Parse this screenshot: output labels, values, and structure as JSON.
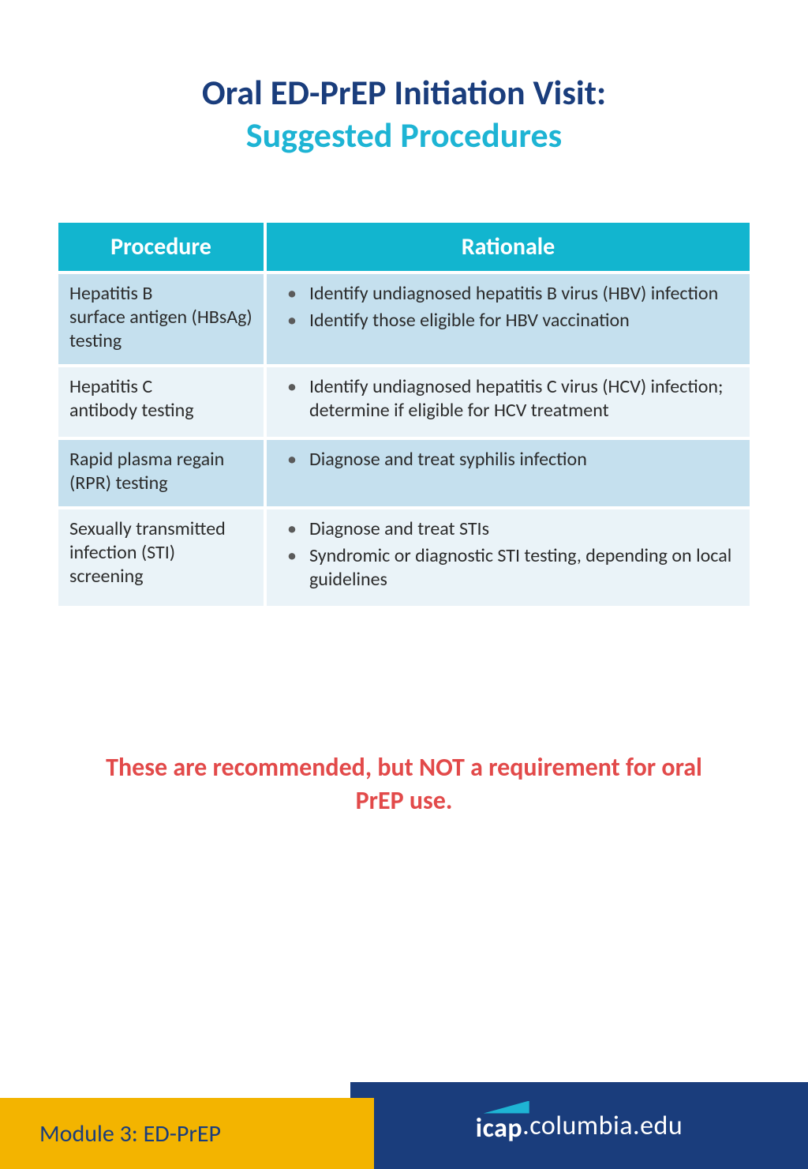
{
  "title": {
    "line1": "Oral ED-PrEP Initiation Visit:",
    "line2": "Suggested Procedures",
    "color1": "#1a3d7c",
    "color2": "#1eb4d4",
    "fontsize": 44
  },
  "table": {
    "header_bg": "#12b5cf",
    "header_fg": "#ffffff",
    "row_dark_bg": "#c5e0ee",
    "row_light_bg": "#eaf3f8",
    "text_color": "#2b2b2b",
    "header_fontsize": 30,
    "cell_fontsize": 24,
    "columns": [
      "Procedure",
      "Rationale"
    ],
    "rows": [
      {
        "shade": "dark",
        "procedure": "Hepatitis B\nsurface antigen (HBsAg) testing",
        "rationale": [
          "Identify undiagnosed hepatitis B virus (HBV) infection",
          "Identify those eligible for HBV vaccination"
        ]
      },
      {
        "shade": "light",
        "procedure": "Hepatitis C\nantibody testing",
        "rationale": [
          "Identify undiagnosed hepatitis C virus (HCV) infection; determine if eligible for HCV treatment"
        ]
      },
      {
        "shade": "dark",
        "procedure": "Rapid plasma regain (RPR) testing",
        "rationale": [
          "Diagnose and treat syphilis infection"
        ]
      },
      {
        "shade": "light",
        "procedure": "Sexually transmitted infection (STI) screening",
        "rationale": [
          "Diagnose and treat STIs",
          "Syndromic or diagnostic STI testing, depending on local guidelines"
        ]
      }
    ]
  },
  "note": {
    "text": "These are recommended, but NOT a requirement for oral PrEP use.",
    "color": "#e24a4a",
    "fontsize": 32
  },
  "footer": {
    "module_text": "Module 3: ED-PrEP",
    "yellow_bg": "#f3b400",
    "blue_bg": "#1a3d7c",
    "logo_icap": "icap",
    "logo_rest": ".columbia.edu",
    "accent": "#1eb4d4"
  }
}
